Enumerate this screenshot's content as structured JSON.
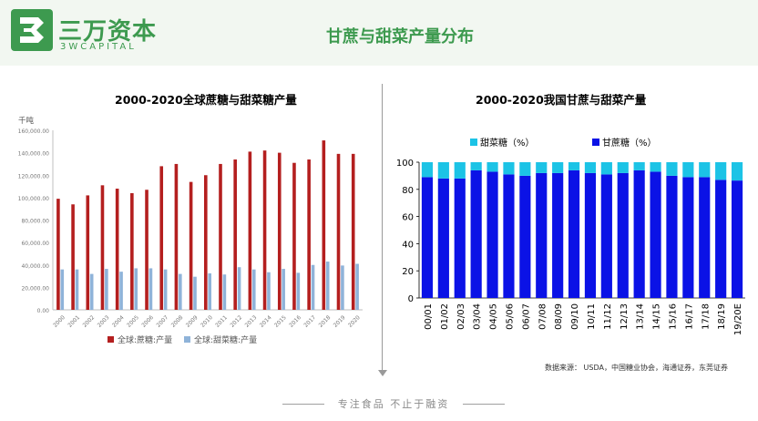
{
  "header": {
    "logo_cn": "三万资本",
    "logo_en": "3WCAPITAL",
    "title": "甘蔗与甜菜产量分布"
  },
  "colors": {
    "brand_green": "#3d9a4f",
    "cane_red": "#b41f1f",
    "beet_lightblue": "#8fb3d9",
    "cane_blue": "#0b12e6",
    "beet_cyan": "#1cc3e6"
  },
  "source_note": "数据来源： USDA，中国糖业协会，海通证券，东莞证券",
  "footer": {
    "slogan": "专注食品 不止于融资"
  },
  "chart_data": [
    {
      "type": "bar",
      "title": "2000-2020全球蔗糖与甜菜糖产量",
      "ylabel": "千吨",
      "xlabel": "",
      "ylim": [
        0,
        160000
      ],
      "yticks": [
        "0.00",
        "20,000.00",
        "40,000.00",
        "60,000.00",
        "80,000.00",
        "100,000.00",
        "120,000.00",
        "140,000.00",
        "160,000.00"
      ],
      "grid": false,
      "legend": "bottom",
      "categories": [
        "2000",
        "2001",
        "2002",
        "2003",
        "2004",
        "2005",
        "2006",
        "2007",
        "2008",
        "2009",
        "2010",
        "2011",
        "2012",
        "2013",
        "2014",
        "2015",
        "2016",
        "2017",
        "2018",
        "2019",
        "2020"
      ],
      "series": [
        {
          "name": "全球:蔗糖:产量",
          "values": [
            99000,
            94000,
            102000,
            111000,
            108000,
            104000,
            107000,
            128000,
            130000,
            114000,
            120000,
            130000,
            134000,
            141000,
            142000,
            140000,
            131000,
            134000,
            151000,
            139000,
            139000
          ]
        },
        {
          "name": "全球:甜菜糖:产量",
          "values": [
            36000,
            36000,
            32000,
            36500,
            34000,
            37000,
            37000,
            36000,
            32000,
            29500,
            32500,
            31500,
            38000,
            36000,
            33500,
            36500,
            33000,
            40000,
            43000,
            39500,
            41000
          ]
        }
      ]
    },
    {
      "type": "bar",
      "stacked": true,
      "title": "2000-2020我国甘蔗与甜菜产量",
      "xlabel": "",
      "ylabel": "",
      "ylim": [
        0,
        100
      ],
      "yticks": [
        "0",
        "20",
        "40",
        "60",
        "80",
        "100"
      ],
      "grid": false,
      "legend": "top",
      "categories": [
        "00/01",
        "01/02",
        "02/03",
        "03/04",
        "04/05",
        "05/06",
        "06/07",
        "07/08",
        "08/09",
        "09/10",
        "10/11",
        "11/12",
        "12/13",
        "13/14",
        "14/15",
        "15/16",
        "16/17",
        "17/18",
        "18/19",
        "19/20E"
      ],
      "series": [
        {
          "name": "甘蔗糖（%）",
          "values": [
            89,
            88,
            88,
            94,
            93,
            91,
            90,
            92,
            92,
            94,
            92,
            91,
            92,
            94,
            93,
            90,
            89,
            89,
            87,
            86.5
          ]
        },
        {
          "name": "甜菜糖（%）",
          "values": [
            11,
            12,
            12,
            6,
            7,
            9,
            10,
            8,
            8,
            6,
            8,
            9,
            8,
            6,
            7,
            10,
            11,
            11,
            13,
            13.5
          ]
        }
      ],
      "legend_order": [
        "甜菜糖（%）",
        "甘蔗糖（%）"
      ]
    }
  ]
}
